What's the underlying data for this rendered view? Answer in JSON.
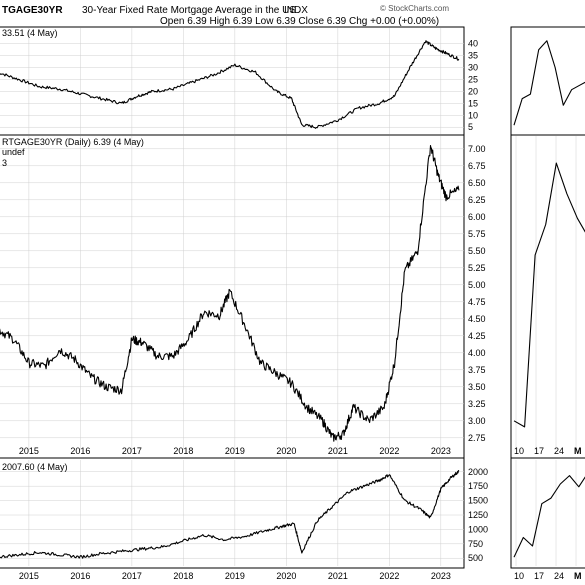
{
  "header": {
    "symbol": "TGAGE30YR",
    "description": "30-Year Fixed Rate Mortgage Average in the US",
    "exchange": "INDX",
    "watermark": "© StockCharts.com",
    "ohlc": "Open 6.39  High 6.39  Low 6.39  Close 6.39  Chg +0.00 (+0.00%)",
    "top_indicator_label": "33.51 (4 May)",
    "main_label_1": "RTGAGE30YR (Daily) 6.39 (4 May)",
    "main_label_2": "undef",
    "main_label_3": "3",
    "bottom_indicator_label": "2007.60 (4 May)"
  },
  "chart_data": [
    {
      "type": "line",
      "panel": "top",
      "y_ticks": [
        "40",
        "35",
        "30",
        "25",
        "20",
        "15",
        "10",
        "5"
      ],
      "ylim": [
        3,
        44
      ],
      "x_ticks": [
        "2015",
        "2016",
        "2017",
        "2018",
        "2019",
        "2020",
        "2021",
        "2022",
        "2023"
      ],
      "x": [
        2014.4,
        2014.8,
        2015.2,
        2015.6,
        2016.0,
        2016.4,
        2016.8,
        2017.1,
        2017.4,
        2017.8,
        2018.2,
        2018.6,
        2019.0,
        2019.4,
        2019.8,
        2020.1,
        2020.3,
        2020.6,
        2021.0,
        2021.4,
        2021.8,
        2022.1,
        2022.4,
        2022.7,
        2022.9,
        2023.1,
        2023.35
      ],
      "values": [
        28,
        25,
        22,
        21,
        19,
        17,
        15,
        18,
        20,
        21,
        24,
        27,
        31,
        28,
        20,
        17,
        6,
        5,
        8,
        13,
        15,
        18,
        30,
        41,
        38,
        36,
        33.5
      ]
    },
    {
      "type": "line",
      "panel": "main",
      "y_ticks": [
        "7.00",
        "6.75",
        "6.50",
        "6.25",
        "6.00",
        "5.75",
        "5.50",
        "5.25",
        "5.00",
        "4.75",
        "4.50",
        "4.25",
        "4.00",
        "3.75",
        "3.50",
        "3.25",
        "3.00",
        "2.75"
      ],
      "ylim": [
        2.6,
        7.1
      ],
      "x_ticks": [
        "2015",
        "2016",
        "2017",
        "2018",
        "2019",
        "2020",
        "2021",
        "2022",
        "2023"
      ],
      "x": [
        2014.4,
        2014.7,
        2015.0,
        2015.3,
        2015.6,
        2015.9,
        2016.2,
        2016.5,
        2016.8,
        2017.0,
        2017.2,
        2017.5,
        2017.8,
        2018.1,
        2018.4,
        2018.7,
        2018.9,
        2019.2,
        2019.5,
        2019.8,
        2020.1,
        2020.4,
        2020.7,
        2020.9,
        2021.1,
        2021.3,
        2021.6,
        2021.9,
        2022.1,
        2022.3,
        2022.55,
        2022.8,
        2022.95,
        2023.1,
        2023.35
      ],
      "values": [
        4.35,
        4.2,
        3.85,
        3.8,
        4.05,
        3.9,
        3.65,
        3.5,
        3.45,
        4.2,
        4.15,
        3.95,
        3.95,
        4.2,
        4.6,
        4.55,
        4.9,
        4.4,
        3.85,
        3.7,
        3.55,
        3.2,
        3.0,
        2.75,
        2.8,
        3.2,
        3.0,
        3.2,
        3.85,
        5.2,
        5.5,
        7.05,
        6.6,
        6.3,
        6.39
      ]
    },
    {
      "type": "line",
      "panel": "bottom",
      "y_ticks": [
        "2000",
        "1750",
        "1500",
        "1250",
        "1000",
        "750",
        "500"
      ],
      "ylim": [
        400,
        2100
      ],
      "x_ticks": [
        "2015",
        "2016",
        "2017",
        "2018",
        "2019",
        "2020",
        "2021",
        "2022",
        "2023"
      ],
      "x": [
        2014.4,
        2014.8,
        2015.2,
        2015.6,
        2016.0,
        2016.4,
        2016.8,
        2017.2,
        2017.6,
        2018.0,
        2018.4,
        2018.8,
        2019.2,
        2019.6,
        2019.9,
        2020.15,
        2020.3,
        2020.6,
        2020.9,
        2021.2,
        2021.5,
        2021.8,
        2022.0,
        2022.3,
        2022.6,
        2022.8,
        2023.0,
        2023.2,
        2023.35
      ],
      "values": [
        520,
        560,
        600,
        560,
        520,
        580,
        620,
        660,
        700,
        800,
        900,
        820,
        880,
        980,
        1050,
        1100,
        600,
        1150,
        1400,
        1650,
        1750,
        1850,
        1950,
        1500,
        1350,
        1200,
        1700,
        1900,
        2007.6
      ]
    },
    {
      "type": "line",
      "panel": "right-top",
      "x": [
        0,
        1,
        2,
        3,
        4,
        5,
        6,
        7,
        8,
        9
      ],
      "values": [
        2,
        14,
        16,
        36,
        40,
        28,
        11,
        18,
        20,
        22
      ]
    },
    {
      "type": "line",
      "panel": "right-main",
      "x_ticks": [
        "10",
        "17",
        "24",
        "M"
      ],
      "x": [
        0,
        1,
        2,
        3,
        4,
        5,
        6,
        7
      ],
      "values": [
        2.8,
        2.7,
        5.5,
        6.0,
        7.0,
        6.5,
        6.1,
        5.8
      ]
    },
    {
      "type": "line",
      "panel": "right-bottom",
      "x_ticks": [
        "10",
        "17",
        "24",
        "M"
      ],
      "x": [
        0,
        1,
        2,
        3,
        4,
        5,
        6,
        7,
        8
      ],
      "values": [
        450,
        800,
        650,
        1400,
        1500,
        1750,
        1900,
        1700,
        1950
      ]
    }
  ]
}
